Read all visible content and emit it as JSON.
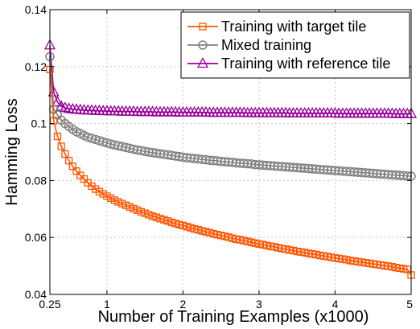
{
  "chart_data": {
    "type": "line",
    "title": "",
    "xlabel": "Number of Training Examples (x1000)",
    "ylabel": "Hamming Loss",
    "xlim": [
      0.25,
      5
    ],
    "ylim": [
      0.04,
      0.14
    ],
    "xticks": [
      0.25,
      1,
      2,
      3,
      4,
      5
    ],
    "xtick_labels": [
      "0.25",
      "1",
      "2",
      "3",
      "4",
      "5"
    ],
    "yticks": [
      0.04,
      0.06,
      0.08,
      0.1,
      0.12,
      0.14
    ],
    "ytick_labels": [
      "0.04",
      "0.06",
      "0.08",
      "0.1",
      "0.12",
      "0.14"
    ],
    "grid": true,
    "legend_position": "top-right",
    "x": [
      0.25,
      0.3,
      0.35,
      0.4,
      0.45,
      0.5,
      0.55,
      0.6,
      0.65,
      0.7,
      0.75,
      0.8,
      0.85,
      0.9,
      0.95,
      1.0,
      1.05,
      1.1,
      1.15,
      1.2,
      1.25,
      1.3,
      1.35,
      1.4,
      1.45,
      1.5,
      1.55,
      1.6,
      1.65,
      1.7,
      1.75,
      1.8,
      1.85,
      1.9,
      1.95,
      2.0,
      2.05,
      2.1,
      2.15,
      2.2,
      2.25,
      2.3,
      2.35,
      2.4,
      2.45,
      2.5,
      2.55,
      2.6,
      2.65,
      2.7,
      2.75,
      2.8,
      2.85,
      2.9,
      2.95,
      3.0,
      3.05,
      3.1,
      3.15,
      3.2,
      3.25,
      3.3,
      3.35,
      3.4,
      3.45,
      3.5,
      3.55,
      3.6,
      3.65,
      3.7,
      3.75,
      3.8,
      3.85,
      3.9,
      3.95,
      4.0,
      4.05,
      4.1,
      4.15,
      4.2,
      4.25,
      4.3,
      4.35,
      4.4,
      4.45,
      4.5,
      4.55,
      4.6,
      4.65,
      4.7,
      4.75,
      4.8,
      4.85,
      4.9,
      4.95,
      5.0
    ],
    "series": [
      {
        "name": "Training with target tile",
        "color": "#ff5500",
        "marker": "square",
        "values": [
          0.119,
          0.101,
          0.0955,
          0.092,
          0.0893,
          0.087,
          0.085,
          0.0833,
          0.0818,
          0.0805,
          0.0792,
          0.078,
          0.077,
          0.0761,
          0.0753,
          0.0745,
          0.0738,
          0.0731,
          0.0725,
          0.0719,
          0.0713,
          0.0707,
          0.0701,
          0.0696,
          0.069,
          0.0685,
          0.068,
          0.0675,
          0.0671,
          0.0666,
          0.0662,
          0.0658,
          0.0653,
          0.0649,
          0.0645,
          0.0642,
          0.0638,
          0.0634,
          0.063,
          0.0627,
          0.0623,
          0.062,
          0.0617,
          0.0613,
          0.061,
          0.0607,
          0.0604,
          0.0601,
          0.0597,
          0.0594,
          0.0592,
          0.0589,
          0.0586,
          0.0583,
          0.058,
          0.0577,
          0.0575,
          0.0572,
          0.0569,
          0.0567,
          0.0564,
          0.0561,
          0.0559,
          0.0556,
          0.0554,
          0.0551,
          0.0549,
          0.0547,
          0.0544,
          0.0542,
          0.054,
          0.0537,
          0.0535,
          0.0533,
          0.053,
          0.0528,
          0.0526,
          0.0524,
          0.0522,
          0.0519,
          0.0517,
          0.0515,
          0.0513,
          0.0511,
          0.0509,
          0.0507,
          0.0505,
          0.0503,
          0.0501,
          0.0499,
          0.0497,
          0.0494,
          0.0492,
          0.049,
          0.0488,
          0.0468
        ]
      },
      {
        "name": "Mixed training",
        "color": "#808080",
        "marker": "circle",
        "values": [
          0.1235,
          0.105,
          0.103,
          0.1012,
          0.1,
          0.099,
          0.098,
          0.0971,
          0.0965,
          0.0958,
          0.0952,
          0.0948,
          0.0944,
          0.094,
          0.0936,
          0.0932,
          0.0928,
          0.0925,
          0.0922,
          0.0919,
          0.0916,
          0.0913,
          0.091,
          0.0907,
          0.0905,
          0.0902,
          0.09,
          0.0898,
          0.0896,
          0.0894,
          0.0892,
          0.089,
          0.0888,
          0.0886,
          0.0884,
          0.0882,
          0.088,
          0.0879,
          0.0877,
          0.0876,
          0.0874,
          0.0873,
          0.0871,
          0.087,
          0.0869,
          0.0867,
          0.0866,
          0.0865,
          0.0864,
          0.0862,
          0.0861,
          0.086,
          0.0859,
          0.0858,
          0.0856,
          0.0855,
          0.0854,
          0.0853,
          0.0852,
          0.0851,
          0.085,
          0.0849,
          0.0848,
          0.0847,
          0.0846,
          0.0845,
          0.0844,
          0.0843,
          0.0842,
          0.0841,
          0.084,
          0.0839,
          0.0838,
          0.0837,
          0.0836,
          0.0835,
          0.0834,
          0.0833,
          0.0832,
          0.0831,
          0.083,
          0.0829,
          0.0828,
          0.0827,
          0.0826,
          0.0825,
          0.0824,
          0.0823,
          0.0822,
          0.0821,
          0.082,
          0.0819,
          0.0818,
          0.0817,
          0.0816,
          0.0815
        ]
      },
      {
        "name": "Training with reference tile",
        "color": "#990099",
        "marker": "triangle",
        "values": [
          0.1275,
          0.111,
          0.1075,
          0.106,
          0.1055,
          0.1052,
          0.105,
          0.1049,
          0.1048,
          0.1047,
          0.1046,
          0.1046,
          0.1045,
          0.1045,
          0.1044,
          0.1044,
          0.1043,
          0.1043,
          0.1043,
          0.1042,
          0.1042,
          0.1042,
          0.1042,
          0.1041,
          0.1041,
          0.1041,
          0.1041,
          0.1041,
          0.104,
          0.104,
          0.104,
          0.104,
          0.104,
          0.104,
          0.1039,
          0.1039,
          0.1039,
          0.1039,
          0.1039,
          0.1039,
          0.1039,
          0.1039,
          0.1038,
          0.1038,
          0.1038,
          0.1038,
          0.1038,
          0.1038,
          0.1038,
          0.1038,
          0.1038,
          0.1038,
          0.1037,
          0.1037,
          0.1037,
          0.1037,
          0.1037,
          0.1037,
          0.1037,
          0.1037,
          0.1037,
          0.1037,
          0.1037,
          0.1036,
          0.1036,
          0.1036,
          0.1036,
          0.1036,
          0.1036,
          0.1036,
          0.1036,
          0.1036,
          0.1036,
          0.1036,
          0.1036,
          0.1036,
          0.1035,
          0.1035,
          0.1035,
          0.1035,
          0.1035,
          0.1035,
          0.1035,
          0.1035,
          0.1035,
          0.1035,
          0.1035,
          0.1035,
          0.1035,
          0.1035,
          0.1035,
          0.1034,
          0.1034,
          0.1034,
          0.1034,
          0.1034
        ]
      }
    ]
  }
}
